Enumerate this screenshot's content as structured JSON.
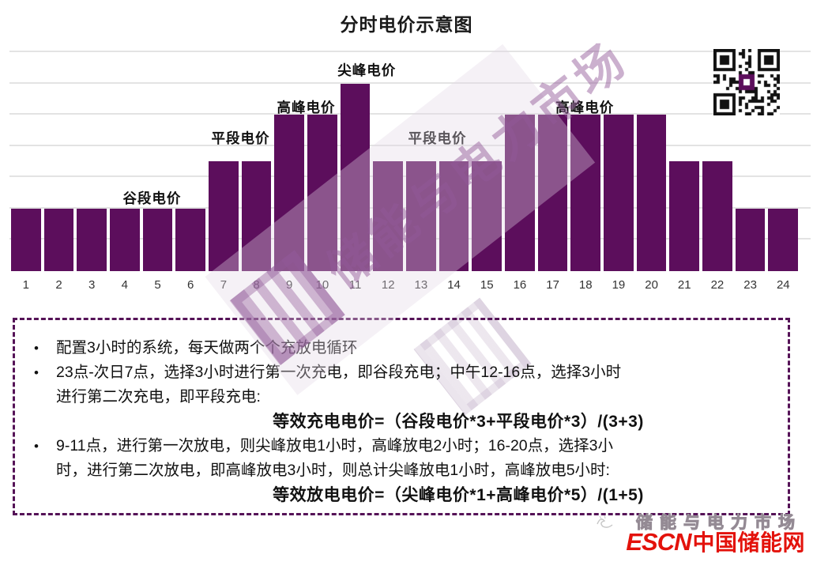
{
  "title": "分时电价示意图",
  "chart_data": {
    "type": "bar",
    "title": "分时电价示意图",
    "categories": [
      1,
      2,
      3,
      4,
      5,
      6,
      7,
      8,
      9,
      10,
      11,
      12,
      13,
      14,
      15,
      16,
      17,
      18,
      19,
      20,
      21,
      22,
      23,
      24
    ],
    "values": [
      2,
      2,
      2,
      2,
      2,
      2,
      3.5,
      3.5,
      5,
      5,
      6,
      3.5,
      3.5,
      3.5,
      3.5,
      5,
      5,
      5,
      5,
      5,
      3.5,
      3.5,
      2,
      2
    ],
    "xlabel": "",
    "ylabel": "",
    "ylim": [
      0,
      7.2
    ],
    "gridline_step": 1,
    "grid": "horizontal, no y-axis tick labels, no axis lines",
    "bar_color": "#5C0E5C",
    "legend": "none",
    "annotations": [
      {
        "label": "谷段电价",
        "hours": "1-6",
        "center_hour": 4.8,
        "level": 2,
        "dy": 26
      },
      {
        "label": "平段电价",
        "hours": "7-8",
        "center_hour": 7.5,
        "level": 3.5,
        "dy": 42
      },
      {
        "label": "高峰电价",
        "hours": "9-10",
        "center_hour": 9.5,
        "level": 5,
        "dy": 22
      },
      {
        "label": "尖峰电价",
        "hours": "11",
        "center_hour": 11.35,
        "level": 6,
        "dy": 30
      },
      {
        "label": "平段电价",
        "hours": "12-15",
        "center_hour": 13.5,
        "level": 3.5,
        "dy": 42
      },
      {
        "label": "高峰电价",
        "hours": "16-20",
        "center_hour": 18,
        "level": 5,
        "dy": 22
      }
    ]
  },
  "watermark": {
    "text": "储能与电力市场"
  },
  "notes": {
    "items": [
      {
        "lines": [
          "配置3小时的系统，每天做两个个充放电循环"
        ]
      },
      {
        "lines": [
          "23点-次日7点，选择3小时进行第一次充电，即谷段充电；中午12-16点，选择3小时",
          "进行第二次充电，即平段充电:"
        ],
        "formula": "等效充电电价=（谷段电价*3+平段电价*3）/(3+3)"
      },
      {
        "lines": [
          "9-11点，进行第一次放电，则尖峰放电1小时，高峰放电2小时；16-20点，选择3小",
          "时，进行第二次放电，即高峰放电3小时，则总计尖峰放电1小时，高峰放电5小时:"
        ],
        "formula": "等效放电电价=（尖峰电价*1+高峰电价*5）/(1+5)"
      }
    ],
    "bullet_glyph": "•"
  },
  "footer": {
    "watermark_text": "储能与电力市场",
    "logo_escn": "ESCN",
    "logo_cn": "中国储能网"
  },
  "colors": {
    "bar": "#5C0E5C",
    "dashed_border": "#551357",
    "logo_red": "#E3120B",
    "gridline": "#E3E3E3"
  }
}
